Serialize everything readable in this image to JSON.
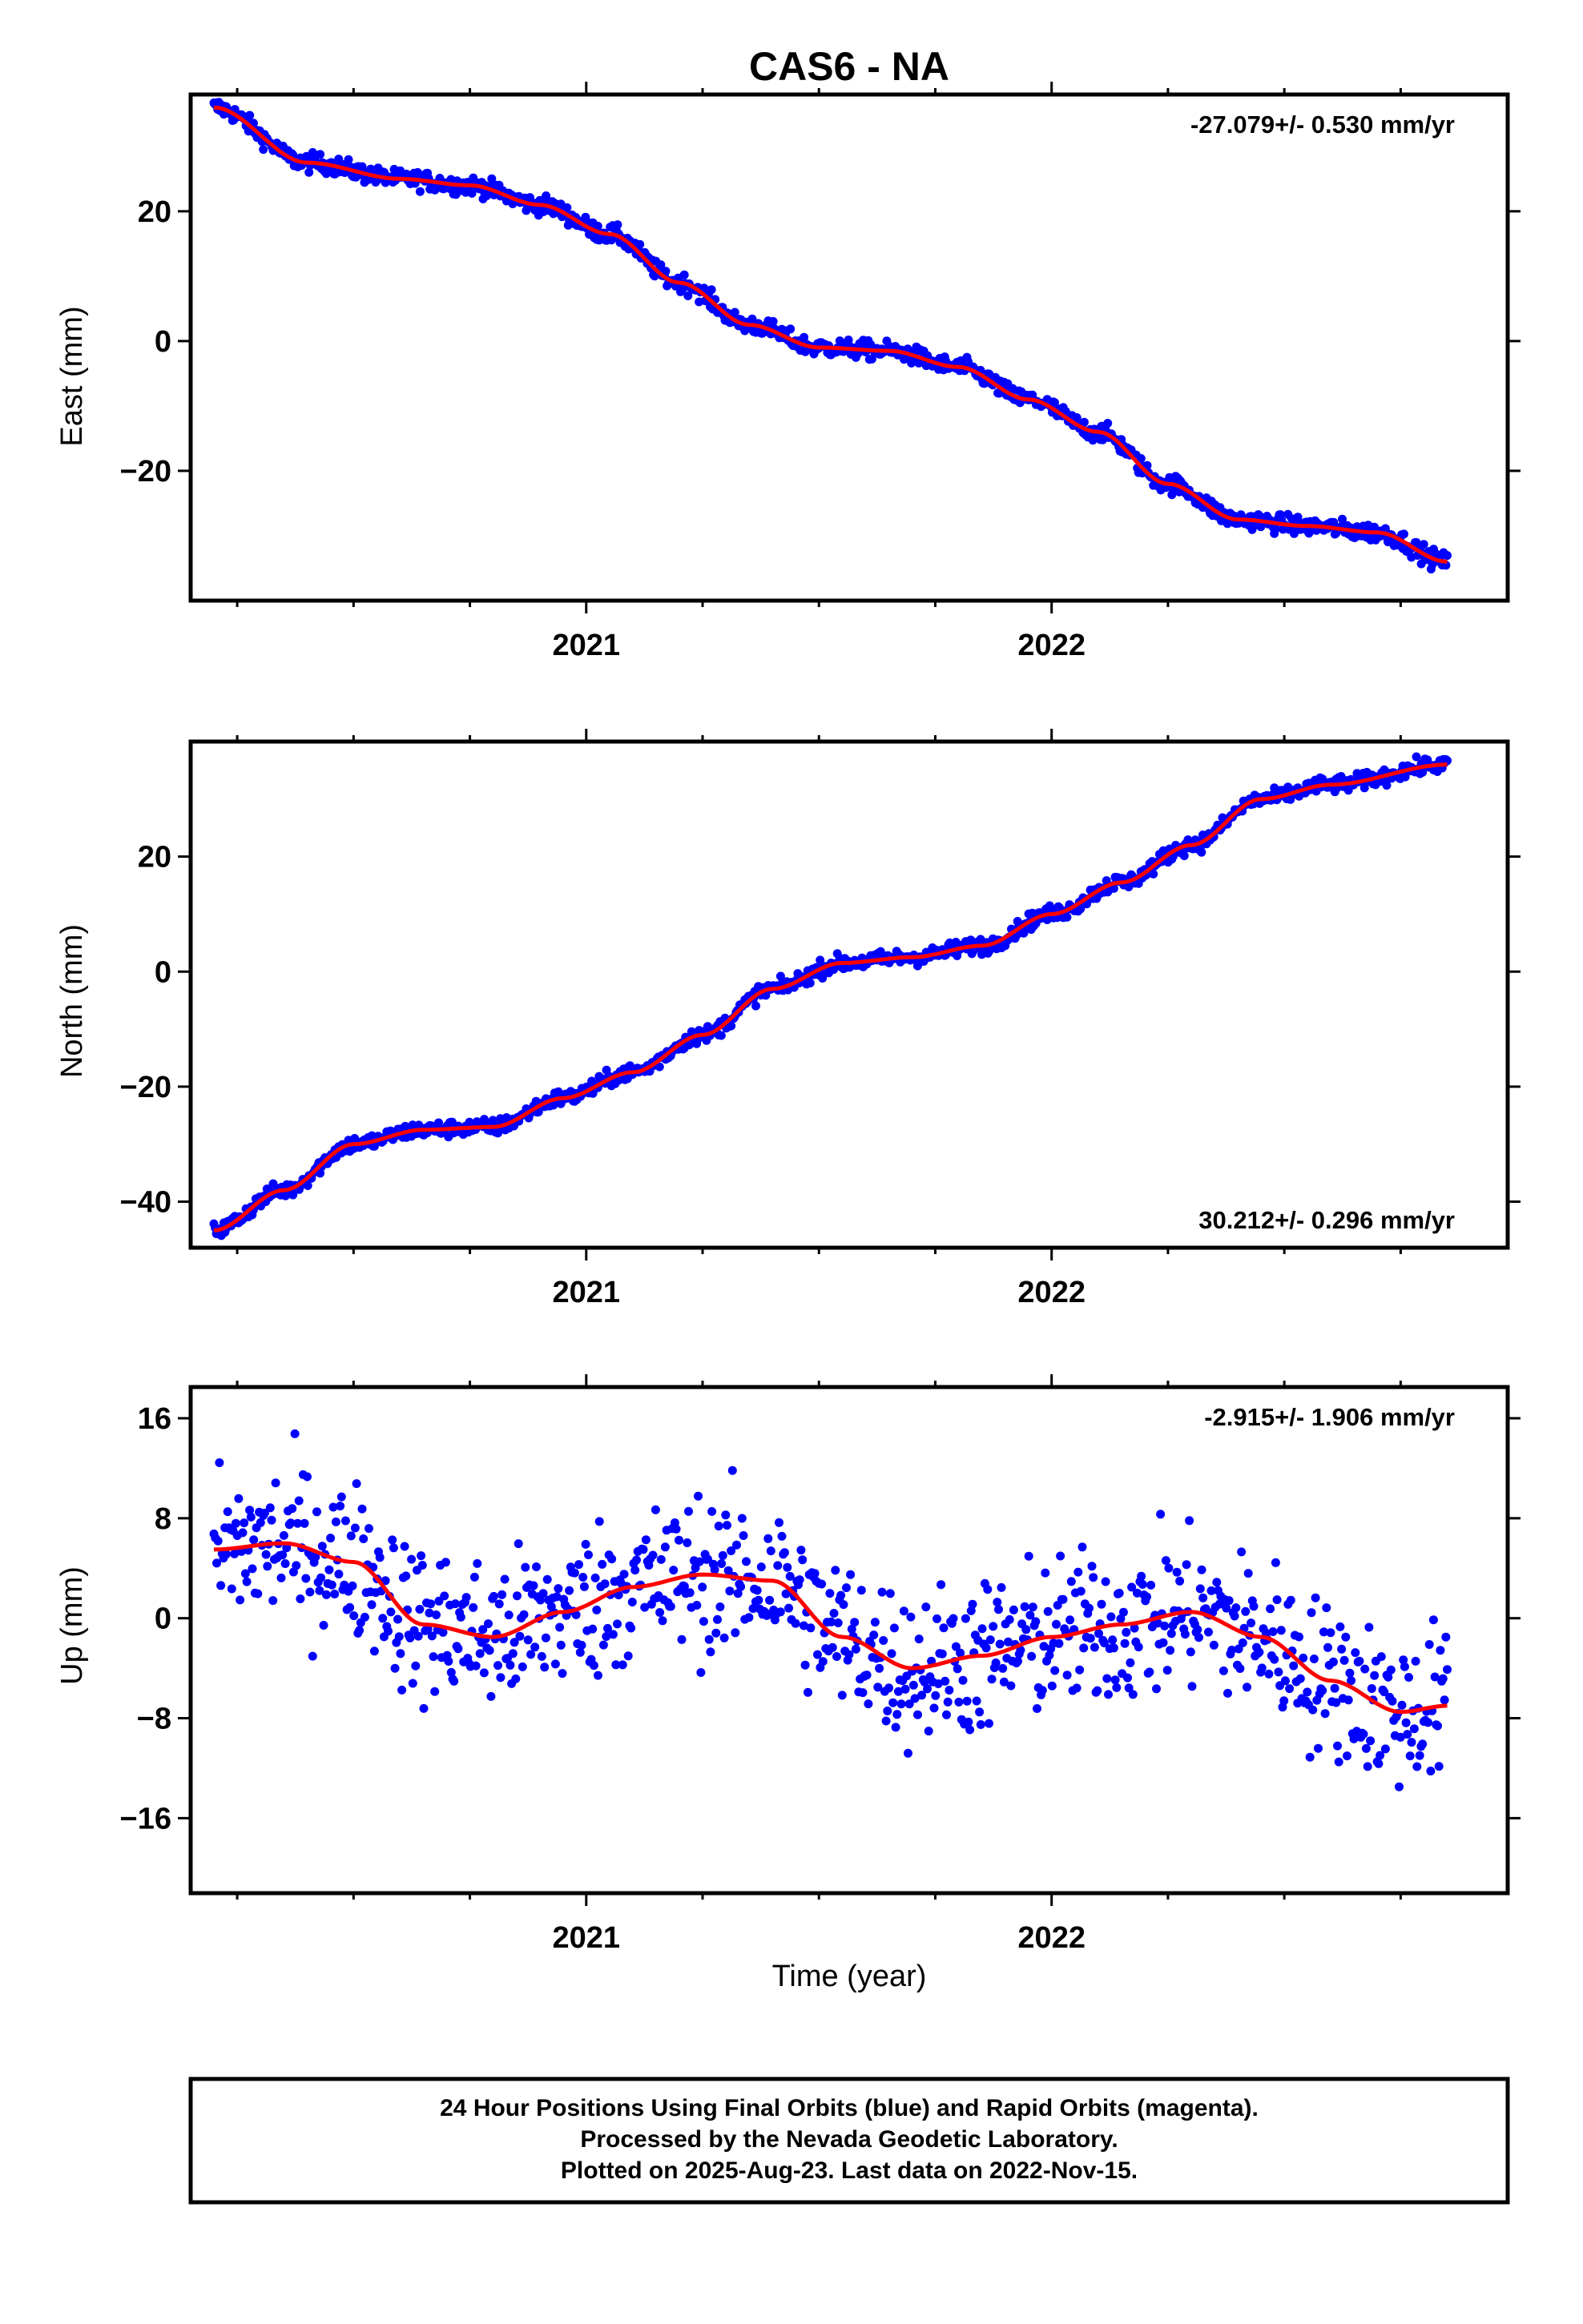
{
  "figure": {
    "title": "CAS6 - NA",
    "xlabel": "Time (year)",
    "footer": [
      "24 Hour Positions Using Final Orbits (blue) and Rapid Orbits (magenta).",
      "Processed by the Nevada Geodetic Laboratory.",
      "Plotted on 2025-Aug-23. Last data on 2022-Nov-15."
    ],
    "colors": {
      "points": "#0000ff",
      "fit": "#ff0000",
      "frame": "#000000"
    }
  },
  "chart_data": [
    {
      "type": "scatter",
      "ylabel": "East (mm)",
      "rate_label": "-27.079+/- 0.530 mm/yr",
      "xlim": [
        2020.15,
        2022.98
      ],
      "ylim": [
        -40,
        38
      ],
      "yticks": [
        -20,
        0,
        20
      ],
      "xticks": [
        2021,
        2022
      ],
      "fit": {
        "x": [
          2020.2,
          2020.4,
          2020.6,
          2020.75,
          2020.9,
          2021.05,
          2021.2,
          2021.35,
          2021.5,
          2021.65,
          2021.8,
          2021.95,
          2022.1,
          2022.25,
          2022.4,
          2022.55,
          2022.7,
          2022.85
        ],
        "y": [
          36,
          27.5,
          25,
          24,
          21,
          16.5,
          9,
          2.5,
          -1,
          -1.5,
          -4,
          -9,
          -14,
          -22,
          -27.5,
          -28.5,
          -29.5,
          -34
        ]
      },
      "noise": 1.0
    },
    {
      "type": "scatter",
      "ylabel": "North (mm)",
      "rate_label": "30.212+/- 0.296 mm/yr",
      "xlim": [
        2020.15,
        2022.98
      ],
      "ylim": [
        -48,
        40
      ],
      "yticks": [
        -40,
        -20,
        0,
        20
      ],
      "xticks": [
        2021,
        2022
      ],
      "fit": {
        "x": [
          2020.2,
          2020.35,
          2020.5,
          2020.65,
          2020.8,
          2020.95,
          2021.1,
          2021.25,
          2021.4,
          2021.55,
          2021.7,
          2021.85,
          2022.0,
          2022.15,
          2022.3,
          2022.45,
          2022.6,
          2022.85
        ],
        "y": [
          -45,
          -38,
          -30,
          -27.5,
          -27,
          -22,
          -17.5,
          -11,
          -3,
          1.5,
          2.5,
          4.5,
          10,
          15.5,
          22,
          30,
          32.5,
          36
        ]
      },
      "noise": 1.0
    },
    {
      "type": "scatter",
      "ylabel": "Up (mm)",
      "rate_label": "-2.915+/- 1.906 mm/yr",
      "xlim": [
        2020.15,
        2022.98
      ],
      "ylim": [
        -22,
        18.5
      ],
      "yticks": [
        -16,
        -8,
        0,
        8,
        16
      ],
      "xticks": [
        2021,
        2022
      ],
      "fit": {
        "x": [
          2020.2,
          2020.35,
          2020.5,
          2020.65,
          2020.8,
          2020.95,
          2021.1,
          2021.25,
          2021.4,
          2021.55,
          2021.7,
          2021.85,
          2022.0,
          2022.15,
          2022.3,
          2022.45,
          2022.6,
          2022.75,
          2022.85
        ],
        "y": [
          5.5,
          6,
          4.5,
          -0.5,
          -1.5,
          0.5,
          2.5,
          3.5,
          3,
          -1.5,
          -4,
          -3,
          -1.5,
          -0.5,
          0.5,
          -1.5,
          -5,
          -7.5,
          -7
        ]
      },
      "noise": 4.5
    }
  ]
}
